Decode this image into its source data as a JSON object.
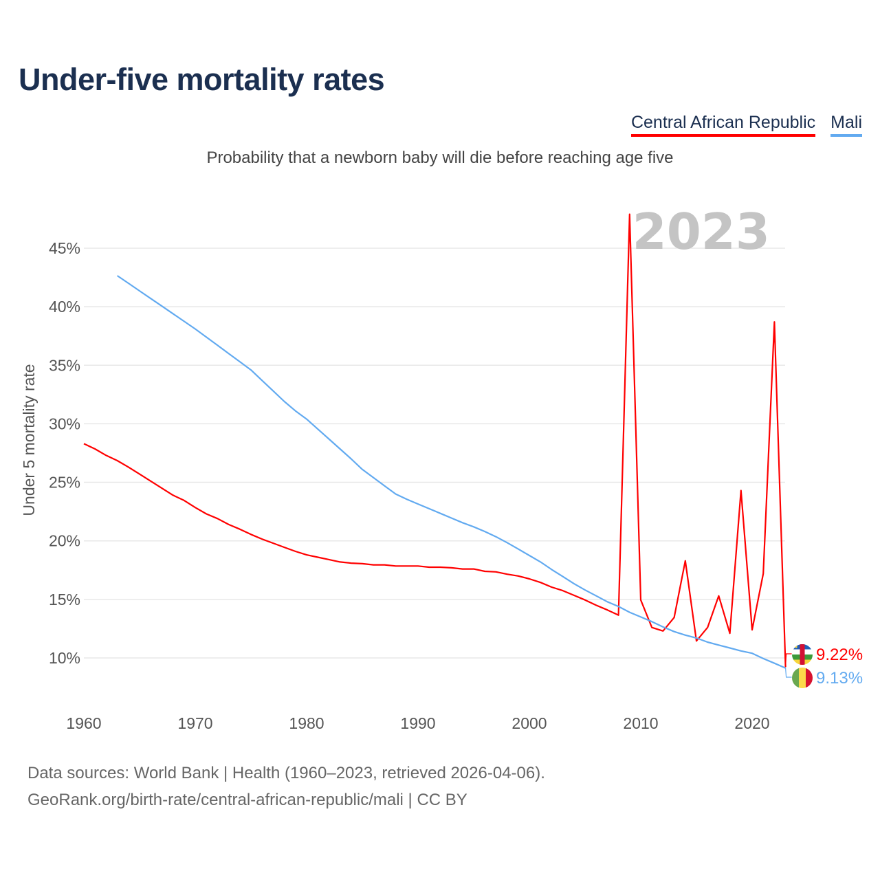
{
  "header": {
    "title": "Under-five mortality rates",
    "subtitle": "Probability that a newborn baby will die before reaching age five"
  },
  "legend": [
    {
      "label": "Central African Republic",
      "color": "#ff0000"
    },
    {
      "label": "Mali",
      "color": "#62aaf0"
    }
  ],
  "footer": {
    "line1": "Data sources: World Bank | Health (1960–2023, retrieved 2026-04-06).",
    "line2": "GeoRank.org/birth-rate/central-african-republic/mali | CC BY"
  },
  "chart_data": {
    "type": "line",
    "title": "Under-five mortality rates",
    "ylabel": "Under 5 mortality rate",
    "xlabel": "",
    "year_watermark": "2023",
    "xlim": [
      1960,
      2023
    ],
    "ylim": [
      6.5,
      48
    ],
    "x_ticks": [
      "1960",
      "1970",
      "1980",
      "1990",
      "2000",
      "2010",
      "2020"
    ],
    "y_ticks": [
      "10%",
      "15%",
      "20%",
      "25%",
      "30%",
      "35%",
      "40%",
      "45%"
    ],
    "y_tick_values": [
      10,
      15,
      20,
      25,
      30,
      35,
      40,
      45
    ],
    "grid": true,
    "legend_position": "top-right",
    "series": [
      {
        "name": "Central African Republic",
        "color": "#ff0000",
        "start_year": 1960,
        "end_label": "9.22%",
        "flag": "central-african-republic-flag",
        "values": [
          28.3,
          27.85,
          27.3,
          26.85,
          26.3,
          25.7,
          25.1,
          24.5,
          23.9,
          23.45,
          22.85,
          22.3,
          21.9,
          21.4,
          21.0,
          20.55,
          20.15,
          19.8,
          19.45,
          19.1,
          18.8,
          18.6,
          18.4,
          18.2,
          18.1,
          18.05,
          17.95,
          17.95,
          17.85,
          17.85,
          17.85,
          17.75,
          17.75,
          17.7,
          17.6,
          17.6,
          17.4,
          17.35,
          17.15,
          17.0,
          16.75,
          16.45,
          16.05,
          15.75,
          15.35,
          14.95,
          14.5,
          14.1,
          13.65,
          47.9,
          14.95,
          12.6,
          12.3,
          13.45,
          18.3,
          11.45,
          12.6,
          15.3,
          12.1,
          24.3,
          12.4,
          17.2,
          38.7,
          9.22
        ]
      },
      {
        "name": "Mali",
        "color": "#62aaf0",
        "start_year": 1963,
        "end_label": "9.13%",
        "flag": "mali-flag",
        "values": [
          42.65,
          42.0,
          41.35,
          40.7,
          40.05,
          39.4,
          38.75,
          38.1,
          37.4,
          36.7,
          36.0,
          35.3,
          34.6,
          33.7,
          32.8,
          31.9,
          31.1,
          30.4,
          29.55,
          28.7,
          27.85,
          27.0,
          26.1,
          25.4,
          24.7,
          24.0,
          23.55,
          23.15,
          22.75,
          22.35,
          21.95,
          21.55,
          21.2,
          20.8,
          20.35,
          19.85,
          19.3,
          18.75,
          18.2,
          17.55,
          16.95,
          16.35,
          15.8,
          15.3,
          14.8,
          14.4,
          13.9,
          13.5,
          13.1,
          12.65,
          12.25,
          11.95,
          11.7,
          11.35,
          11.1,
          10.85,
          10.6,
          10.4,
          9.95,
          9.55,
          9.13
        ]
      }
    ]
  }
}
